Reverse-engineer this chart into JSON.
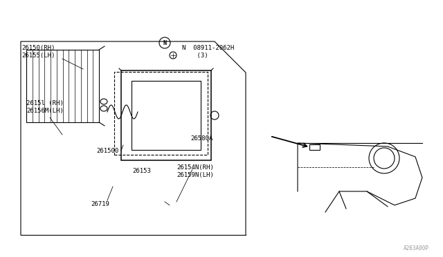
{
  "bg_color": "#ffffff",
  "line_color": "#000000",
  "text_color": "#000000",
  "light_gray": "#888888",
  "fig_width": 6.4,
  "fig_height": 3.72,
  "dpi": 100,
  "footer_text": "A263A00P",
  "labels": {
    "part1": "26150(RH)\n26155(LH)",
    "part2": "N  08911-2062H\n   (3)",
    "part3": "26580A",
    "part4": "2615l (RH)\n26156M(LH)",
    "part5": "261500",
    "part6": "26153",
    "part7": "26719",
    "part8": "26154N(RH)\n26159N(LH)"
  }
}
